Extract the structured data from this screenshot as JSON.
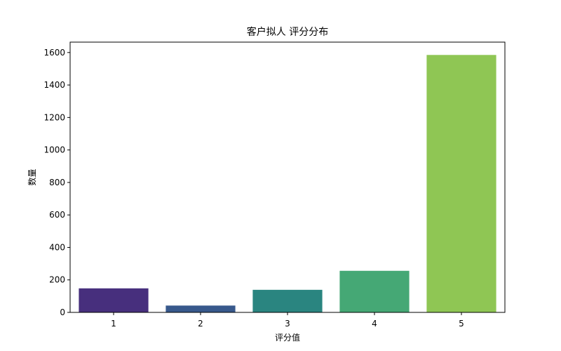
{
  "chart_data": {
    "type": "bar",
    "title": "客户拟人 评分分布",
    "xlabel": "评分值",
    "ylabel": "数量",
    "categories": [
      "1",
      "2",
      "3",
      "4",
      "5"
    ],
    "values": [
      148,
      42,
      139,
      256,
      1585
    ],
    "colors": [
      "#472f7d",
      "#38598c",
      "#2a8580",
      "#45a875",
      "#8fc654"
    ],
    "yticks": [
      0,
      200,
      400,
      600,
      800,
      1000,
      1200,
      1400,
      1600
    ],
    "ytick_labels": [
      "0",
      "200",
      "400",
      "600",
      "800",
      "1000",
      "1200",
      "1400",
      "1600"
    ],
    "ylim": [
      0,
      1664
    ],
    "grid": false,
    "legend": false
  }
}
